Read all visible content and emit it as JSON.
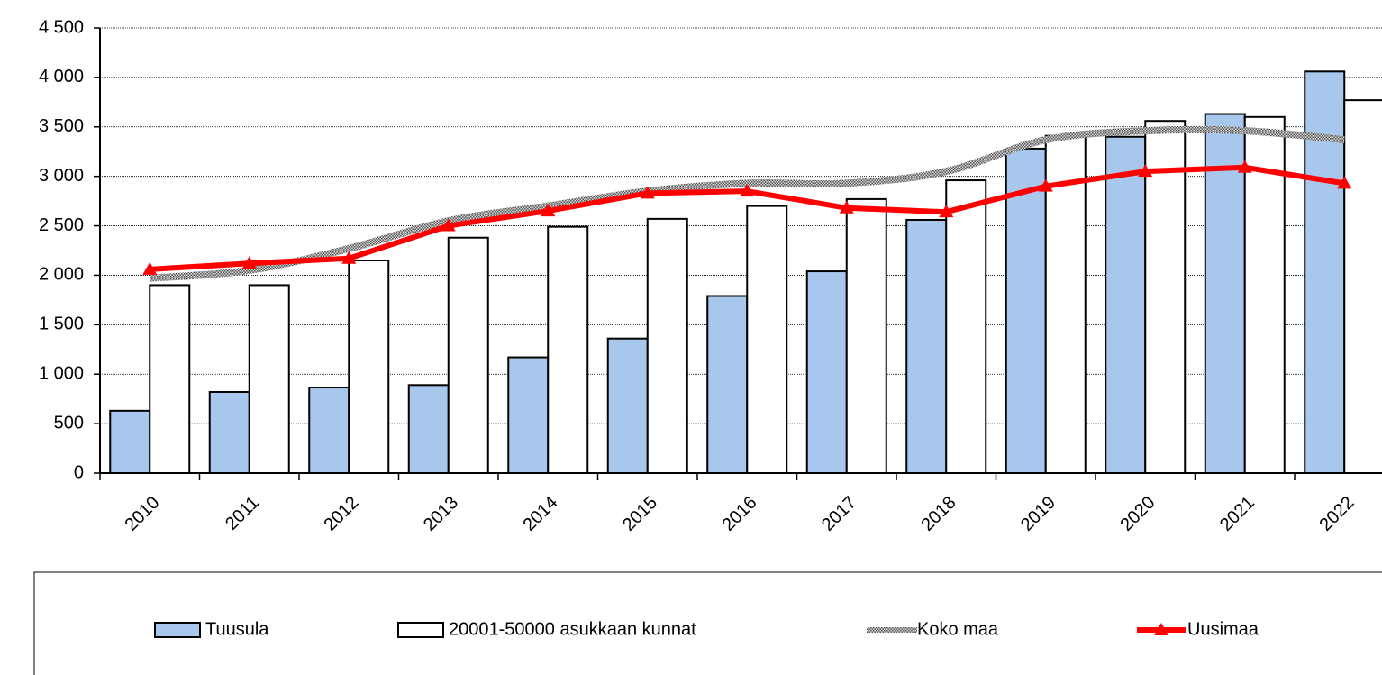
{
  "chart_data": {
    "type": "bar-line",
    "categories": [
      "2010",
      "2011",
      "2012",
      "2013",
      "2014",
      "2015",
      "2016",
      "2017",
      "2018",
      "2019",
      "2020",
      "2021",
      "2022"
    ],
    "series": [
      {
        "name": "Tuusula",
        "type": "bar",
        "color": "#a7c8ec",
        "values": [
          630,
          820,
          865,
          890,
          1170,
          1360,
          1790,
          2040,
          2560,
          3280,
          3400,
          3630,
          4060
        ]
      },
      {
        "name": "20001-50000 asukkaan kunnat",
        "type": "bar",
        "color": "#ffffff",
        "values": [
          1900,
          1900,
          2150,
          2380,
          2490,
          2570,
          2700,
          2770,
          2960,
          3410,
          3560,
          3600,
          3770
        ]
      },
      {
        "name": "Koko maa",
        "type": "line",
        "color": "#8c8c8c",
        "values": [
          1970,
          2050,
          2270,
          2550,
          2700,
          2850,
          2930,
          2930,
          3050,
          3370,
          3460,
          3460,
          3370
        ]
      },
      {
        "name": "Uusimaa",
        "type": "line",
        "color": "#ff0000",
        "values": [
          2060,
          2120,
          2170,
          2500,
          2650,
          2830,
          2850,
          2680,
          2640,
          2900,
          3050,
          3090,
          2930
        ]
      }
    ],
    "ylim": [
      0,
      4500
    ],
    "yticks": [
      0,
      500,
      {
        "value": 1000,
        "label": "1 000"
      },
      {
        "value": 1500,
        "label": "1 500"
      },
      {
        "value": 2000,
        "label": "2 000"
      },
      {
        "value": 2500,
        "label": "2 500"
      },
      {
        "value": 3000,
        "label": "3 000"
      },
      {
        "value": 3500,
        "label": "3 500"
      },
      {
        "value": 4000,
        "label": "4 000"
      },
      {
        "value": 4500,
        "label": "4 500"
      }
    ],
    "grid": true,
    "legend": "bottom"
  }
}
